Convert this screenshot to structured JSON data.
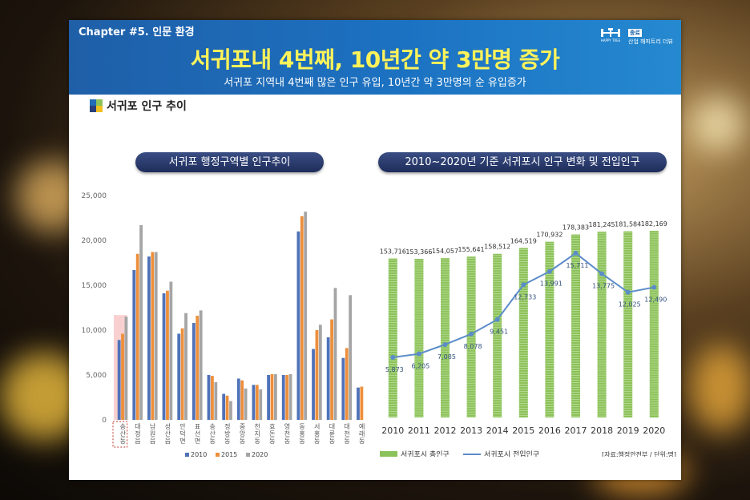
{
  "chapter": "Chapter #5. 인문 환경",
  "logo": {
    "badge": "종료",
    "name": "산업 해피트리 더뷰",
    "brand": "HAPPY TREE"
  },
  "headline": "서귀포내 4번째, 10년간 약 3만명 증가",
  "subheadline": "서귀포 지역내 4번째 많은 인구 유입, 10년간 약 3만명의 순 유입증가",
  "section_title": "서귀포 인구 추이",
  "colors": {
    "banner": "#1f6bb8",
    "headline": "#fff35a",
    "bar2010": "#4f72b8",
    "bar2015": "#ed8f3c",
    "bar2020": "#a5a5a5",
    "green": "#8cc25a",
    "line": "#5b8cc8"
  },
  "chart_data": [
    {
      "type": "bar",
      "title": "서귀포 행정구역별 인구추이",
      "categories": [
        "송산동",
        "대정읍",
        "남원읍",
        "성산읍",
        "안덕면",
        "표선면",
        "송산동",
        "정방동",
        "중앙동",
        "천지동",
        "효돈동",
        "영천동",
        "동홍동",
        "서홍동",
        "대륜동",
        "대천동",
        "예래동"
      ],
      "series": [
        {
          "name": "2010",
          "values": [
            8900,
            16700,
            18200,
            14100,
            9600,
            10800,
            5000,
            2900,
            4600,
            3900,
            5000,
            5000,
            21000,
            7900,
            9200,
            6900,
            3600
          ]
        },
        {
          "name": "2015",
          "values": [
            9600,
            18500,
            18700,
            14400,
            10200,
            11600,
            4900,
            2700,
            4400,
            3900,
            5100,
            5000,
            22700,
            10000,
            11200,
            8000,
            3700
          ]
        },
        {
          "name": "2020",
          "values": [
            11500,
            21700,
            18700,
            15400,
            11900,
            12200,
            4200,
            2100,
            3500,
            3400,
            5100,
            5100,
            23200,
            10600,
            14700,
            13900,
            null
          ]
        }
      ],
      "ylim": [
        0,
        25000
      ],
      "yticks": [
        "25,000",
        "20,000",
        "15,000",
        "10,000",
        "5,000",
        "0"
      ],
      "legend": "bottom"
    },
    {
      "type": "bar+line",
      "title": "2010~2020년 기준 서귀포시 인구 변화 및 전입인구",
      "x": [
        "2010",
        "2011",
        "2012",
        "2013",
        "2014",
        "2015",
        "2016",
        "2017",
        "2018",
        "2019",
        "2020"
      ],
      "series": [
        {
          "name": "서귀포시 총인구",
          "type": "bar",
          "values": [
            153716,
            153366,
            154057,
            155641,
            158512,
            164519,
            170932,
            178383,
            181245,
            181584,
            182169
          ],
          "labels": [
            "153,716",
            "153,366",
            "154,057",
            "155,641",
            "158,512",
            "164,519",
            "170,932",
            "178,383",
            "181,245",
            "181,584",
            "182,169"
          ]
        },
        {
          "name": "서귀포시 전입인구",
          "type": "line",
          "values": [
            5873,
            6205,
            7085,
            8078,
            9451,
            12733,
            13991,
            15711,
            13775,
            12025,
            12490
          ],
          "labels": [
            "5,873",
            "6,205",
            "7,085",
            "8,078",
            "9,451",
            "12,733",
            "13,991",
            "15,711",
            "13,775",
            "12,025",
            "12,490"
          ]
        }
      ],
      "legend": "bottom",
      "source": "[자료:행정안전부 / 단위:명]"
    }
  ]
}
